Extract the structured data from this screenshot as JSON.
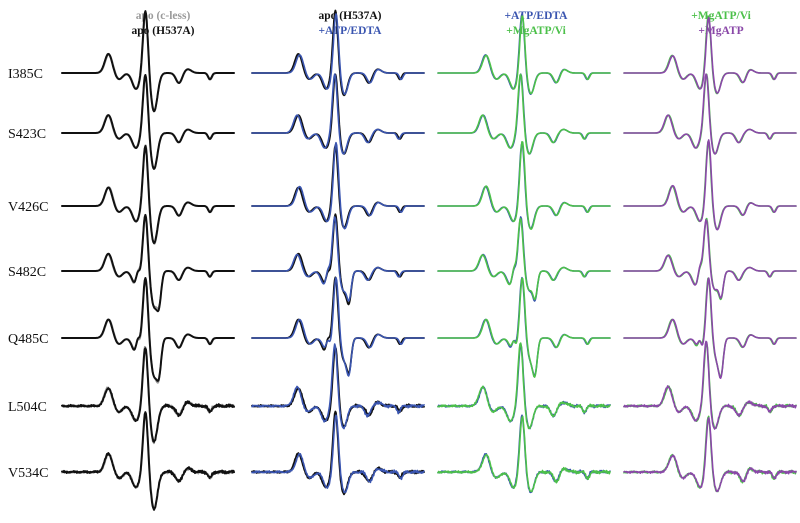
{
  "chart_data": {
    "type": "line",
    "title": "",
    "xlabel": "",
    "ylabel": "",
    "grid": false,
    "rows": [
      "I385C",
      "S423C",
      "V426C",
      "S482C",
      "Q485C",
      "L504C",
      "V534C"
    ],
    "panels": [
      {
        "legend": [
          {
            "label": "apo (c-less)",
            "color": "#9a9a9a"
          },
          {
            "label": "apo (H537A)",
            "color": "#111111"
          }
        ],
        "series": [
          {
            "name": "apo (c-less)",
            "color": "#9a9a9a",
            "variant": 1,
            "width": 1.6
          },
          {
            "name": "apo (H537A)",
            "color": "#111111",
            "variant": 0,
            "width": 2.0
          }
        ],
        "shape": "wide"
      },
      {
        "legend": [
          {
            "label": "apo (H537A)",
            "color": "#111111"
          },
          {
            "label": "+ATP/EDTA",
            "color": "#3a55b0"
          }
        ],
        "series": [
          {
            "name": "apo (H537A)",
            "color": "#111111",
            "variant": 0,
            "width": 1.8
          },
          {
            "name": "+ATP/EDTA",
            "color": "#3a55b0",
            "variant": 2,
            "width": 1.6
          }
        ],
        "shape": "narrow"
      },
      {
        "legend": [
          {
            "label": "+ATP/EDTA",
            "color": "#3a55b0"
          },
          {
            "label": "+MgATP/Vi",
            "color": "#4cc04a"
          }
        ],
        "series": [
          {
            "name": "+ATP/EDTA",
            "color": "#3a55b0",
            "variant": 2,
            "width": 1.6
          },
          {
            "name": "+MgATP/Vi",
            "color": "#4cc04a",
            "variant": 3,
            "width": 1.6
          }
        ],
        "shape": "narrow"
      },
      {
        "legend": [
          {
            "label": "+MgATP/Vi",
            "color": "#4cc04a"
          },
          {
            "label": "+MgATP",
            "color": "#8a48a8"
          }
        ],
        "series": [
          {
            "name": "+MgATP/Vi",
            "color": "#4cc04a",
            "variant": 3,
            "width": 1.6
          },
          {
            "name": "+MgATP",
            "color": "#8a48a8",
            "variant": 4,
            "width": 1.6
          }
        ],
        "shape": "narrow"
      }
    ]
  }
}
